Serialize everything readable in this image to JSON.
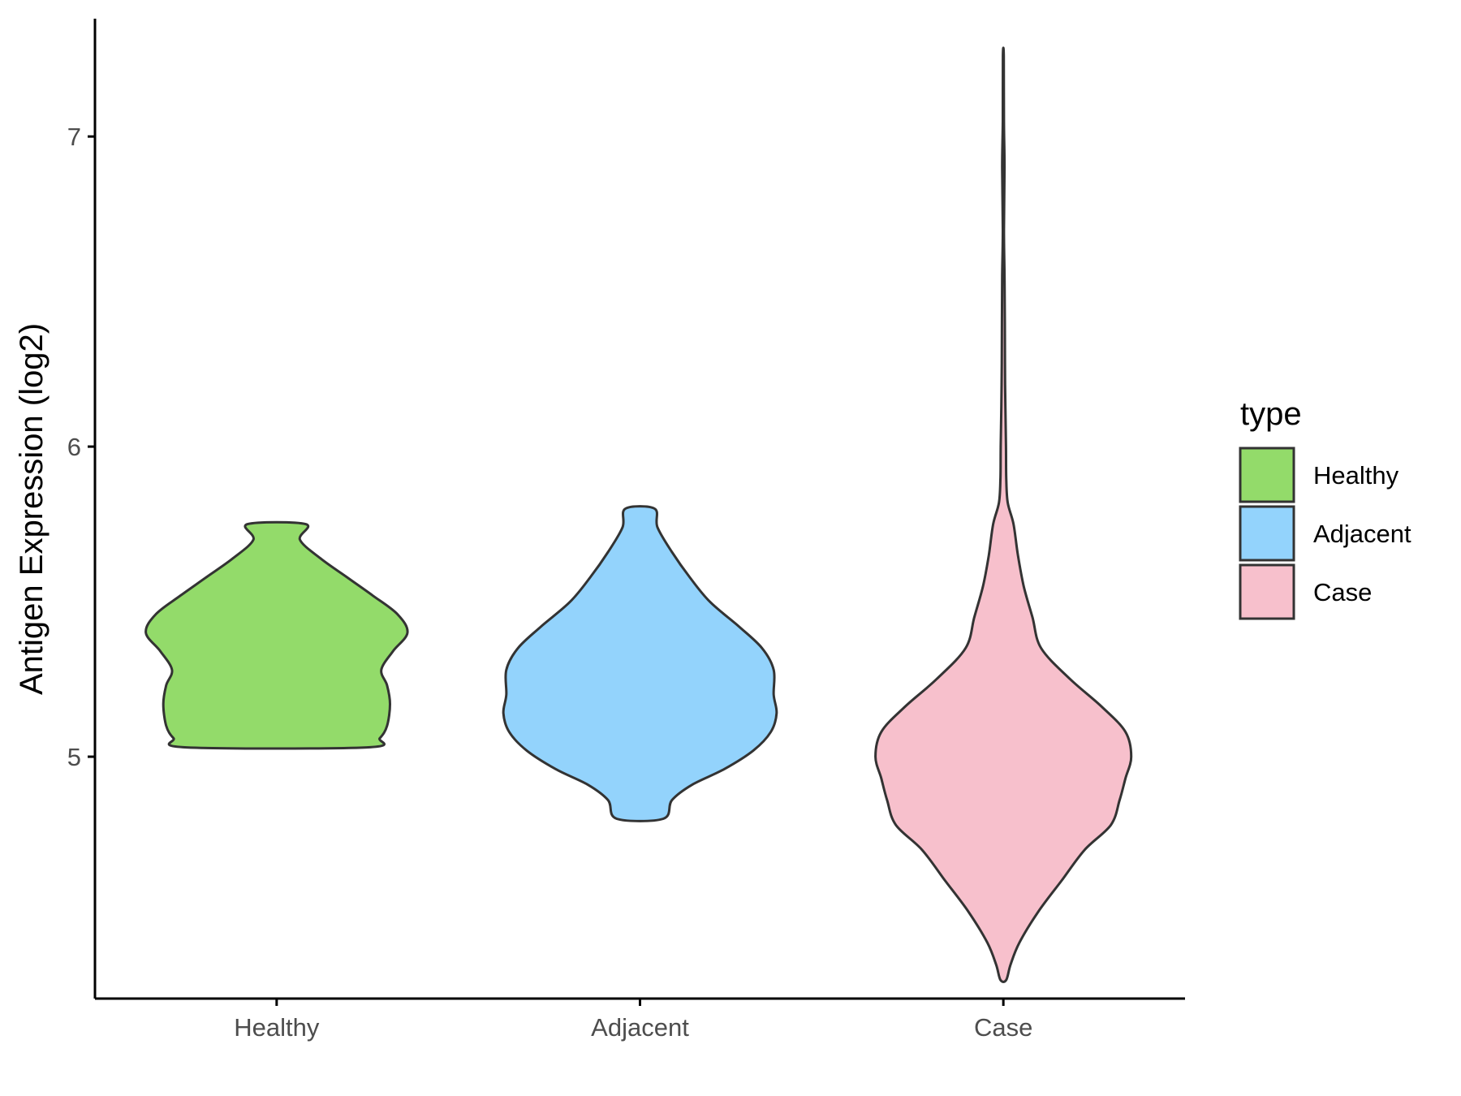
{
  "chart_data": {
    "type": "violin",
    "ylabel": "Antigen Expression (log2)",
    "xlabel": "",
    "categories": [
      "Healthy",
      "Adjacent",
      "Case"
    ],
    "ylim": [
      4.22,
      7.38
    ],
    "yticks": [
      5,
      6,
      7
    ],
    "grid": false,
    "legend": {
      "title": "type",
      "position": "right",
      "entries": [
        "Healthy",
        "Adjacent",
        "Case"
      ]
    },
    "colors": {
      "Healthy": "#93DB6A",
      "Adjacent": "#93D3FC",
      "Case": "#F7C0CC",
      "outline": "#333333"
    },
    "series": [
      {
        "category": "Healthy",
        "min": 5.03,
        "max": 5.75,
        "density": [
          [
            5.03,
            0.62
          ],
          [
            5.06,
            0.71
          ],
          [
            5.1,
            0.76
          ],
          [
            5.17,
            0.78
          ],
          [
            5.23,
            0.76
          ],
          [
            5.28,
            0.72
          ],
          [
            5.34,
            0.8
          ],
          [
            5.4,
            0.9
          ],
          [
            5.46,
            0.83
          ],
          [
            5.52,
            0.66
          ],
          [
            5.58,
            0.48
          ],
          [
            5.64,
            0.3
          ],
          [
            5.7,
            0.16
          ],
          [
            5.75,
            0.2
          ]
        ]
      },
      {
        "category": "Adjacent",
        "min": 4.8,
        "max": 5.8,
        "density": [
          [
            4.8,
            0.16
          ],
          [
            4.86,
            0.22
          ],
          [
            4.91,
            0.36
          ],
          [
            4.96,
            0.58
          ],
          [
            5.02,
            0.78
          ],
          [
            5.08,
            0.9
          ],
          [
            5.14,
            0.94
          ],
          [
            5.2,
            0.92
          ],
          [
            5.28,
            0.92
          ],
          [
            5.35,
            0.84
          ],
          [
            5.42,
            0.68
          ],
          [
            5.5,
            0.48
          ],
          [
            5.58,
            0.34
          ],
          [
            5.66,
            0.22
          ],
          [
            5.74,
            0.12
          ],
          [
            5.8,
            0.1
          ]
        ]
      },
      {
        "category": "Case",
        "min": 4.28,
        "max": 7.26,
        "density": [
          [
            4.28,
            0.02
          ],
          [
            4.33,
            0.05
          ],
          [
            4.4,
            0.11
          ],
          [
            4.5,
            0.24
          ],
          [
            4.6,
            0.4
          ],
          [
            4.7,
            0.56
          ],
          [
            4.78,
            0.74
          ],
          [
            4.86,
            0.8
          ],
          [
            4.93,
            0.84
          ],
          [
            5.0,
            0.88
          ],
          [
            5.08,
            0.84
          ],
          [
            5.16,
            0.68
          ],
          [
            5.25,
            0.46
          ],
          [
            5.35,
            0.26
          ],
          [
            5.45,
            0.2
          ],
          [
            5.55,
            0.14
          ],
          [
            5.65,
            0.1
          ],
          [
            5.75,
            0.07
          ],
          [
            5.82,
            0.03
          ],
          [
            5.9,
            0.02
          ],
          [
            6.0,
            0.018
          ],
          [
            6.2,
            0.012
          ],
          [
            6.4,
            0.01
          ],
          [
            6.55,
            0.008
          ],
          [
            6.7,
            0.004
          ],
          [
            6.9,
            0.008
          ],
          [
            7.05,
            0.004
          ],
          [
            7.26,
            0.003
          ]
        ]
      }
    ]
  }
}
